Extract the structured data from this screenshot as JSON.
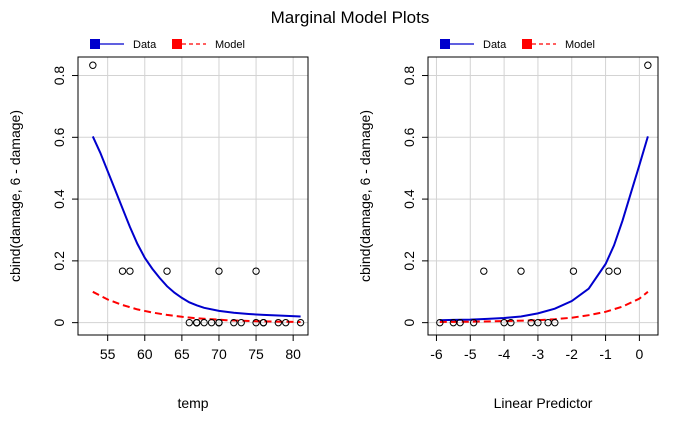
{
  "figure": {
    "title": "Marginal Model Plots"
  },
  "chart_data": [
    {
      "type": "scatter",
      "title": "",
      "xlabel": "temp",
      "ylabel": "cbind(damage, 6 - damage)",
      "xlim": [
        51,
        82
      ],
      "ylim": [
        -0.04,
        0.86
      ],
      "xticks": [
        55,
        60,
        65,
        70,
        75,
        80
      ],
      "yticks": [
        0.0,
        0.2,
        0.4,
        0.6,
        0.8
      ],
      "grid": true,
      "legend_position": "top-left",
      "points": {
        "x": [
          53,
          57,
          58,
          63,
          66,
          67,
          67,
          67,
          68,
          69,
          70,
          70,
          70,
          70,
          72,
          73,
          75,
          75,
          76,
          76,
          78,
          79,
          81
        ],
        "y": [
          0.8333,
          0.1667,
          0.1667,
          0.1667,
          0,
          0,
          0,
          0,
          0,
          0,
          0,
          0.1667,
          0,
          0,
          0,
          0,
          0,
          0.1667,
          0,
          0,
          0,
          0,
          0
        ]
      },
      "series": [
        {
          "name": "Data",
          "color": "#0000CD",
          "style": "solid",
          "x": [
            53,
            54,
            55,
            56,
            57,
            58,
            59,
            60,
            61,
            62,
            63,
            64,
            65,
            66,
            67,
            68,
            70,
            72,
            74,
            76,
            78,
            81
          ],
          "y": [
            0.603,
            0.55,
            0.49,
            0.43,
            0.37,
            0.31,
            0.255,
            0.21,
            0.175,
            0.145,
            0.118,
            0.097,
            0.08,
            0.066,
            0.056,
            0.048,
            0.038,
            0.032,
            0.028,
            0.025,
            0.023,
            0.02
          ]
        },
        {
          "name": "Model",
          "color": "#FF0000",
          "style": "dashed",
          "x": [
            53,
            55,
            57,
            59,
            61,
            63,
            65,
            67,
            69,
            71,
            73,
            75,
            77,
            79,
            81
          ],
          "y": [
            0.1,
            0.075,
            0.057,
            0.043,
            0.033,
            0.025,
            0.019,
            0.014,
            0.011,
            0.008,
            0.0062,
            0.0047,
            0.0036,
            0.0027,
            0.002
          ]
        }
      ]
    },
    {
      "type": "scatter",
      "title": "",
      "xlabel": "Linear Predictor",
      "ylabel": "cbind(damage, 6 - damage)",
      "xlim": [
        -6.25,
        0.55
      ],
      "ylim": [
        -0.04,
        0.86
      ],
      "xticks": [
        -6,
        -5,
        -4,
        -3,
        -2,
        -1,
        0
      ],
      "yticks": [
        0.0,
        0.2,
        0.4,
        0.6,
        0.8
      ],
      "grid": true,
      "legend_position": "top-left",
      "points": {
        "x": [
          -5.9,
          -5.5,
          -5.3,
          -4.9,
          -4.6,
          -4.0,
          -3.8,
          -3.5,
          -3.2,
          -3.0,
          -2.7,
          -2.5,
          -1.95,
          -0.9,
          -0.65,
          0.25
        ],
        "y": [
          0,
          0,
          0,
          0,
          0.1667,
          0,
          0,
          0.1667,
          0,
          0,
          0,
          0,
          0.1667,
          0.1667,
          0.1667,
          0.8333
        ]
      },
      "series": [
        {
          "name": "Data",
          "color": "#0000CD",
          "style": "solid",
          "x": [
            -5.9,
            -5.5,
            -5.0,
            -4.5,
            -4.0,
            -3.5,
            -3.0,
            -2.5,
            -2.0,
            -1.5,
            -1.0,
            -0.75,
            -0.5,
            -0.25,
            0.0,
            0.25
          ],
          "y": [
            0.008,
            0.009,
            0.01,
            0.012,
            0.015,
            0.02,
            0.03,
            0.045,
            0.07,
            0.11,
            0.19,
            0.25,
            0.33,
            0.42,
            0.51,
            0.603
          ]
        },
        {
          "name": "Model",
          "color": "#FF0000",
          "style": "dashed",
          "x": [
            -5.9,
            -5.0,
            -4.0,
            -3.0,
            -2.5,
            -2.0,
            -1.5,
            -1.0,
            -0.5,
            0.0,
            0.25
          ],
          "y": [
            0.002,
            0.003,
            0.005,
            0.008,
            0.011,
            0.016,
            0.024,
            0.035,
            0.052,
            0.078,
            0.1
          ]
        }
      ]
    }
  ]
}
